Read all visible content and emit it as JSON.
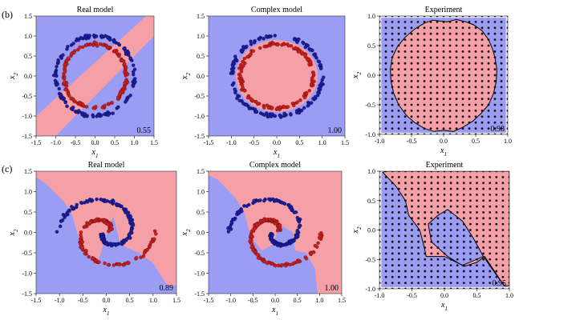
{
  "colors": {
    "class_blue_region": "#9b9cf4",
    "class_red_region": "#f4a0a6",
    "blue_points": "#1c1c9e",
    "red_points": "#c81e1e",
    "experiment_background": "#e9e9ee",
    "boundary": "#000000"
  },
  "row_labels": [
    "(b)",
    "(c)"
  ],
  "chart_data": [
    {
      "type": "scatter",
      "panel": "b-real",
      "title": "Real model",
      "xlabel": "x1",
      "ylabel": "x2",
      "xlim": [
        -1.5,
        1.5
      ],
      "ylim": [
        -1.5,
        1.5
      ],
      "xticks": [
        "-1.5",
        "-1.0",
        "-0.5",
        "0.0",
        "0.5",
        "1.0",
        "1.5"
      ],
      "yticks": [
        "-1.5",
        "-1.0",
        "-0.5",
        "0.0",
        "0.5",
        "1.0",
        "1.5"
      ],
      "score": "0.55",
      "dataset": "circles",
      "decision_region": "diagonal band",
      "series": [
        {
          "color": "blue",
          "shape": "circle",
          "radius": 1.0
        },
        {
          "color": "red",
          "shape": "circle",
          "radius": 0.8
        }
      ]
    },
    {
      "type": "scatter",
      "panel": "b-complex",
      "title": "Complex model",
      "xlabel": "x1",
      "ylabel": "x2",
      "xlim": [
        -1.5,
        1.5
      ],
      "ylim": [
        -1.5,
        1.5
      ],
      "xticks": [
        "-1.5",
        "-1.0",
        "-0.5",
        "0.0",
        "0.5",
        "1.0",
        "1.5"
      ],
      "yticks": [
        "-1.5",
        "-1.0",
        "-0.5",
        "0.0",
        "0.5",
        "1.0",
        "1.5"
      ],
      "score": "1.00",
      "dataset": "circles",
      "decision_region": "disc radius 0.9",
      "series": [
        {
          "color": "blue",
          "shape": "circle",
          "radius": 1.0
        },
        {
          "color": "red",
          "shape": "circle",
          "radius": 0.8
        }
      ]
    },
    {
      "type": "scatter",
      "panel": "b-experiment",
      "title": "Experiment",
      "xlabel": "x1",
      "ylabel": "x2",
      "xlim": [
        -1.0,
        1.0
      ],
      "ylim": [
        -1.0,
        1.0
      ],
      "xticks": [
        "-1.0",
        "-0.5",
        "0.0",
        "0.5",
        "1.0"
      ],
      "yticks": [
        "-1.0",
        "-0.5",
        "0.0",
        "0.5",
        "1.0"
      ],
      "score": "0.98",
      "grid": "21x21 points",
      "decision_region": "polygon",
      "red_region_polygon": [
        [
          -0.17,
          0.93
        ],
        [
          0.05,
          0.9
        ],
        [
          0.2,
          0.94
        ],
        [
          0.35,
          0.9
        ],
        [
          0.47,
          0.85
        ],
        [
          0.6,
          0.75
        ],
        [
          0.7,
          0.6
        ],
        [
          0.76,
          0.45
        ],
        [
          0.8,
          0.3
        ],
        [
          0.83,
          0.1
        ],
        [
          0.82,
          -0.1
        ],
        [
          0.78,
          -0.3
        ],
        [
          0.7,
          -0.5
        ],
        [
          0.58,
          -0.65
        ],
        [
          0.45,
          -0.78
        ],
        [
          0.3,
          -0.88
        ],
        [
          0.15,
          -0.95
        ],
        [
          0.0,
          -0.93
        ],
        [
          -0.15,
          -0.95
        ],
        [
          -0.3,
          -0.9
        ],
        [
          -0.45,
          -0.8
        ],
        [
          -0.58,
          -0.68
        ],
        [
          -0.7,
          -0.5
        ],
        [
          -0.78,
          -0.3
        ],
        [
          -0.82,
          -0.1
        ],
        [
          -0.83,
          0.1
        ],
        [
          -0.8,
          0.3
        ],
        [
          -0.72,
          0.48
        ],
        [
          -0.6,
          0.64
        ],
        [
          -0.45,
          0.78
        ],
        [
          -0.3,
          0.88
        ]
      ]
    },
    {
      "type": "scatter",
      "panel": "c-real",
      "title": "Real model",
      "xlabel": "x1",
      "ylabel": "x2",
      "xlim": [
        -1.5,
        1.5
      ],
      "ylim": [
        -1.5,
        1.5
      ],
      "xticks": [
        "-1.5",
        "-1.0",
        "-0.5",
        "0.0",
        "0.5",
        "1.0",
        "1.5"
      ],
      "yticks": [
        "-1.5",
        "-1.0",
        "-0.5",
        "0.0",
        "0.5",
        "1.0",
        "1.5"
      ],
      "score": "0.89",
      "dataset": "two spirals",
      "decision_region": "polygon",
      "red_region_polygon": [
        [
          -1.2,
          1.5
        ],
        [
          1.5,
          1.5
        ],
        [
          1.5,
          -1.3
        ],
        [
          1.3,
          -1.3
        ],
        [
          1.0,
          -0.75
        ],
        [
          0.7,
          -0.5
        ],
        [
          0.3,
          -0.3
        ],
        [
          0.15,
          0.4
        ],
        [
          0.05,
          0.1
        ],
        [
          -0.2,
          -0.8
        ],
        [
          -0.35,
          -0.6
        ],
        [
          -0.55,
          -0.3
        ],
        [
          -0.75,
          0.5
        ],
        [
          -0.9,
          0.75
        ],
        [
          -1.3,
          1.2
        ],
        [
          -1.5,
          1.35
        ],
        [
          -1.5,
          1.5
        ]
      ]
    },
    {
      "type": "scatter",
      "panel": "c-complex",
      "title": "Complex model",
      "xlabel": "x1",
      "ylabel": "x2",
      "xlim": [
        -1.5,
        1.5
      ],
      "ylim": [
        -1.5,
        1.5
      ],
      "xticks": [
        "-1.5",
        "-1.0",
        "-0.5",
        "0.0",
        "0.5",
        "1.0",
        "1.5"
      ],
      "yticks": [
        "-1.5",
        "-1.0",
        "-0.5",
        "0.0",
        "0.5",
        "1.0",
        "1.5"
      ],
      "score": "1.00",
      "dataset": "two spirals",
      "decision_region": "polygon",
      "red_region_polygon": [
        [
          -1.5,
          1.5
        ],
        [
          1.5,
          1.5
        ],
        [
          1.5,
          -1.5
        ],
        [
          0.95,
          -1.5
        ],
        [
          0.9,
          -0.9
        ],
        [
          0.7,
          -0.5
        ],
        [
          0.45,
          -0.45
        ],
        [
          0.4,
          0.0
        ],
        [
          0.1,
          0.2
        ],
        [
          -0.05,
          -0.3
        ],
        [
          -0.3,
          -0.45
        ],
        [
          -0.55,
          -0.1
        ],
        [
          -0.7,
          0.5
        ],
        [
          -0.9,
          0.85
        ],
        [
          -1.3,
          1.3
        ],
        [
          -1.5,
          1.4
        ]
      ]
    },
    {
      "type": "scatter",
      "panel": "c-experiment",
      "title": "Experiment",
      "xlabel": "x1",
      "ylabel": "x2",
      "xlim": [
        -1.0,
        1.0
      ],
      "ylim": [
        -1.0,
        1.0
      ],
      "xticks": [
        "-1.0",
        "-0.5",
        "0.0",
        "0.5",
        "1.0"
      ],
      "yticks": [
        "-1.0",
        "-0.5",
        "0.0",
        "0.5",
        "1.0"
      ],
      "score": "0.95",
      "grid": "21x21 points",
      "decision_region": "polygon",
      "red_region_polygon": [
        [
          -0.9,
          1.0
        ],
        [
          1.0,
          1.0
        ],
        [
          1.0,
          -0.95
        ],
        [
          0.92,
          -0.95
        ],
        [
          0.6,
          -0.45
        ],
        [
          0.45,
          -0.15
        ],
        [
          0.28,
          0.15
        ],
        [
          0.05,
          0.35
        ],
        [
          -0.1,
          0.25
        ],
        [
          -0.25,
          0.1
        ],
        [
          -0.2,
          -0.2
        ],
        [
          0.05,
          -0.45
        ],
        [
          0.3,
          -0.62
        ],
        [
          0.5,
          -0.55
        ],
        [
          0.62,
          -0.45
        ],
        [
          0.92,
          -0.95
        ],
        [
          0.6,
          -0.45
        ],
        [
          0.28,
          -0.6
        ],
        [
          0.0,
          -0.45
        ],
        [
          -0.28,
          -0.45
        ],
        [
          -0.32,
          -0.25
        ],
        [
          -0.38,
          0.0
        ],
        [
          -0.55,
          0.25
        ],
        [
          -0.6,
          0.5
        ],
        [
          -0.75,
          0.75
        ],
        [
          -0.95,
          0.98
        ]
      ]
    }
  ]
}
